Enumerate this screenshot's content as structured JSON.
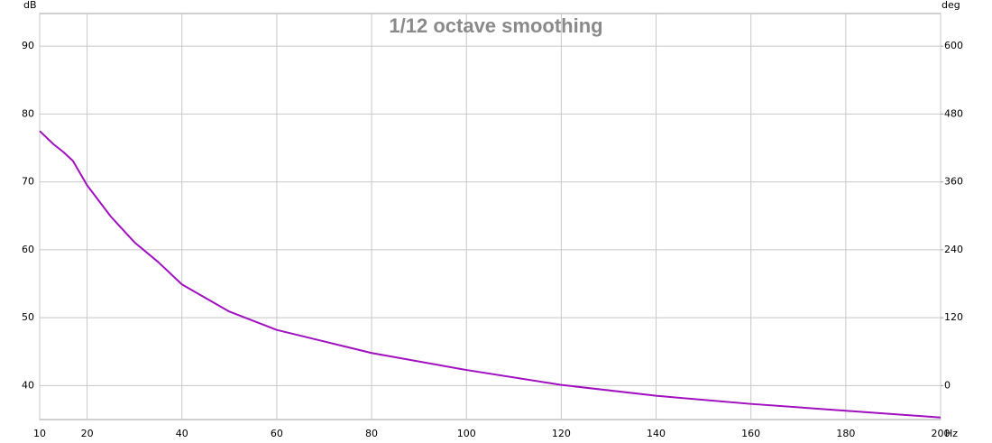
{
  "chart_data": {
    "type": "line",
    "title": "1/12 octave smoothing",
    "y_label": "dB",
    "y2_label": "deg",
    "x_label": "Hz",
    "x": [
      10,
      13,
      15,
      17,
      20,
      25,
      30,
      35,
      40,
      50,
      60,
      70,
      80,
      100,
      120,
      140,
      160,
      180,
      200
    ],
    "values": [
      77.5,
      75.5,
      74.4,
      73.1,
      69.5,
      64.9,
      61.1,
      58.2,
      54.9,
      50.9,
      48.2,
      46.5,
      44.8,
      42.3,
      40.1,
      38.5,
      37.3,
      36.3,
      35.3
    ],
    "color": "#a010c0",
    "xlim": [
      10,
      200
    ],
    "xticks": [
      10,
      20,
      40,
      60,
      80,
      100,
      120,
      140,
      160,
      180,
      200
    ],
    "ylim": [
      35,
      94.8
    ],
    "yticks": [
      40,
      50,
      60,
      70,
      80,
      90
    ],
    "y2lim": [
      -60,
      657.6
    ],
    "y2ticks": [
      0,
      120,
      240,
      360,
      480,
      600
    ],
    "grid": true
  }
}
